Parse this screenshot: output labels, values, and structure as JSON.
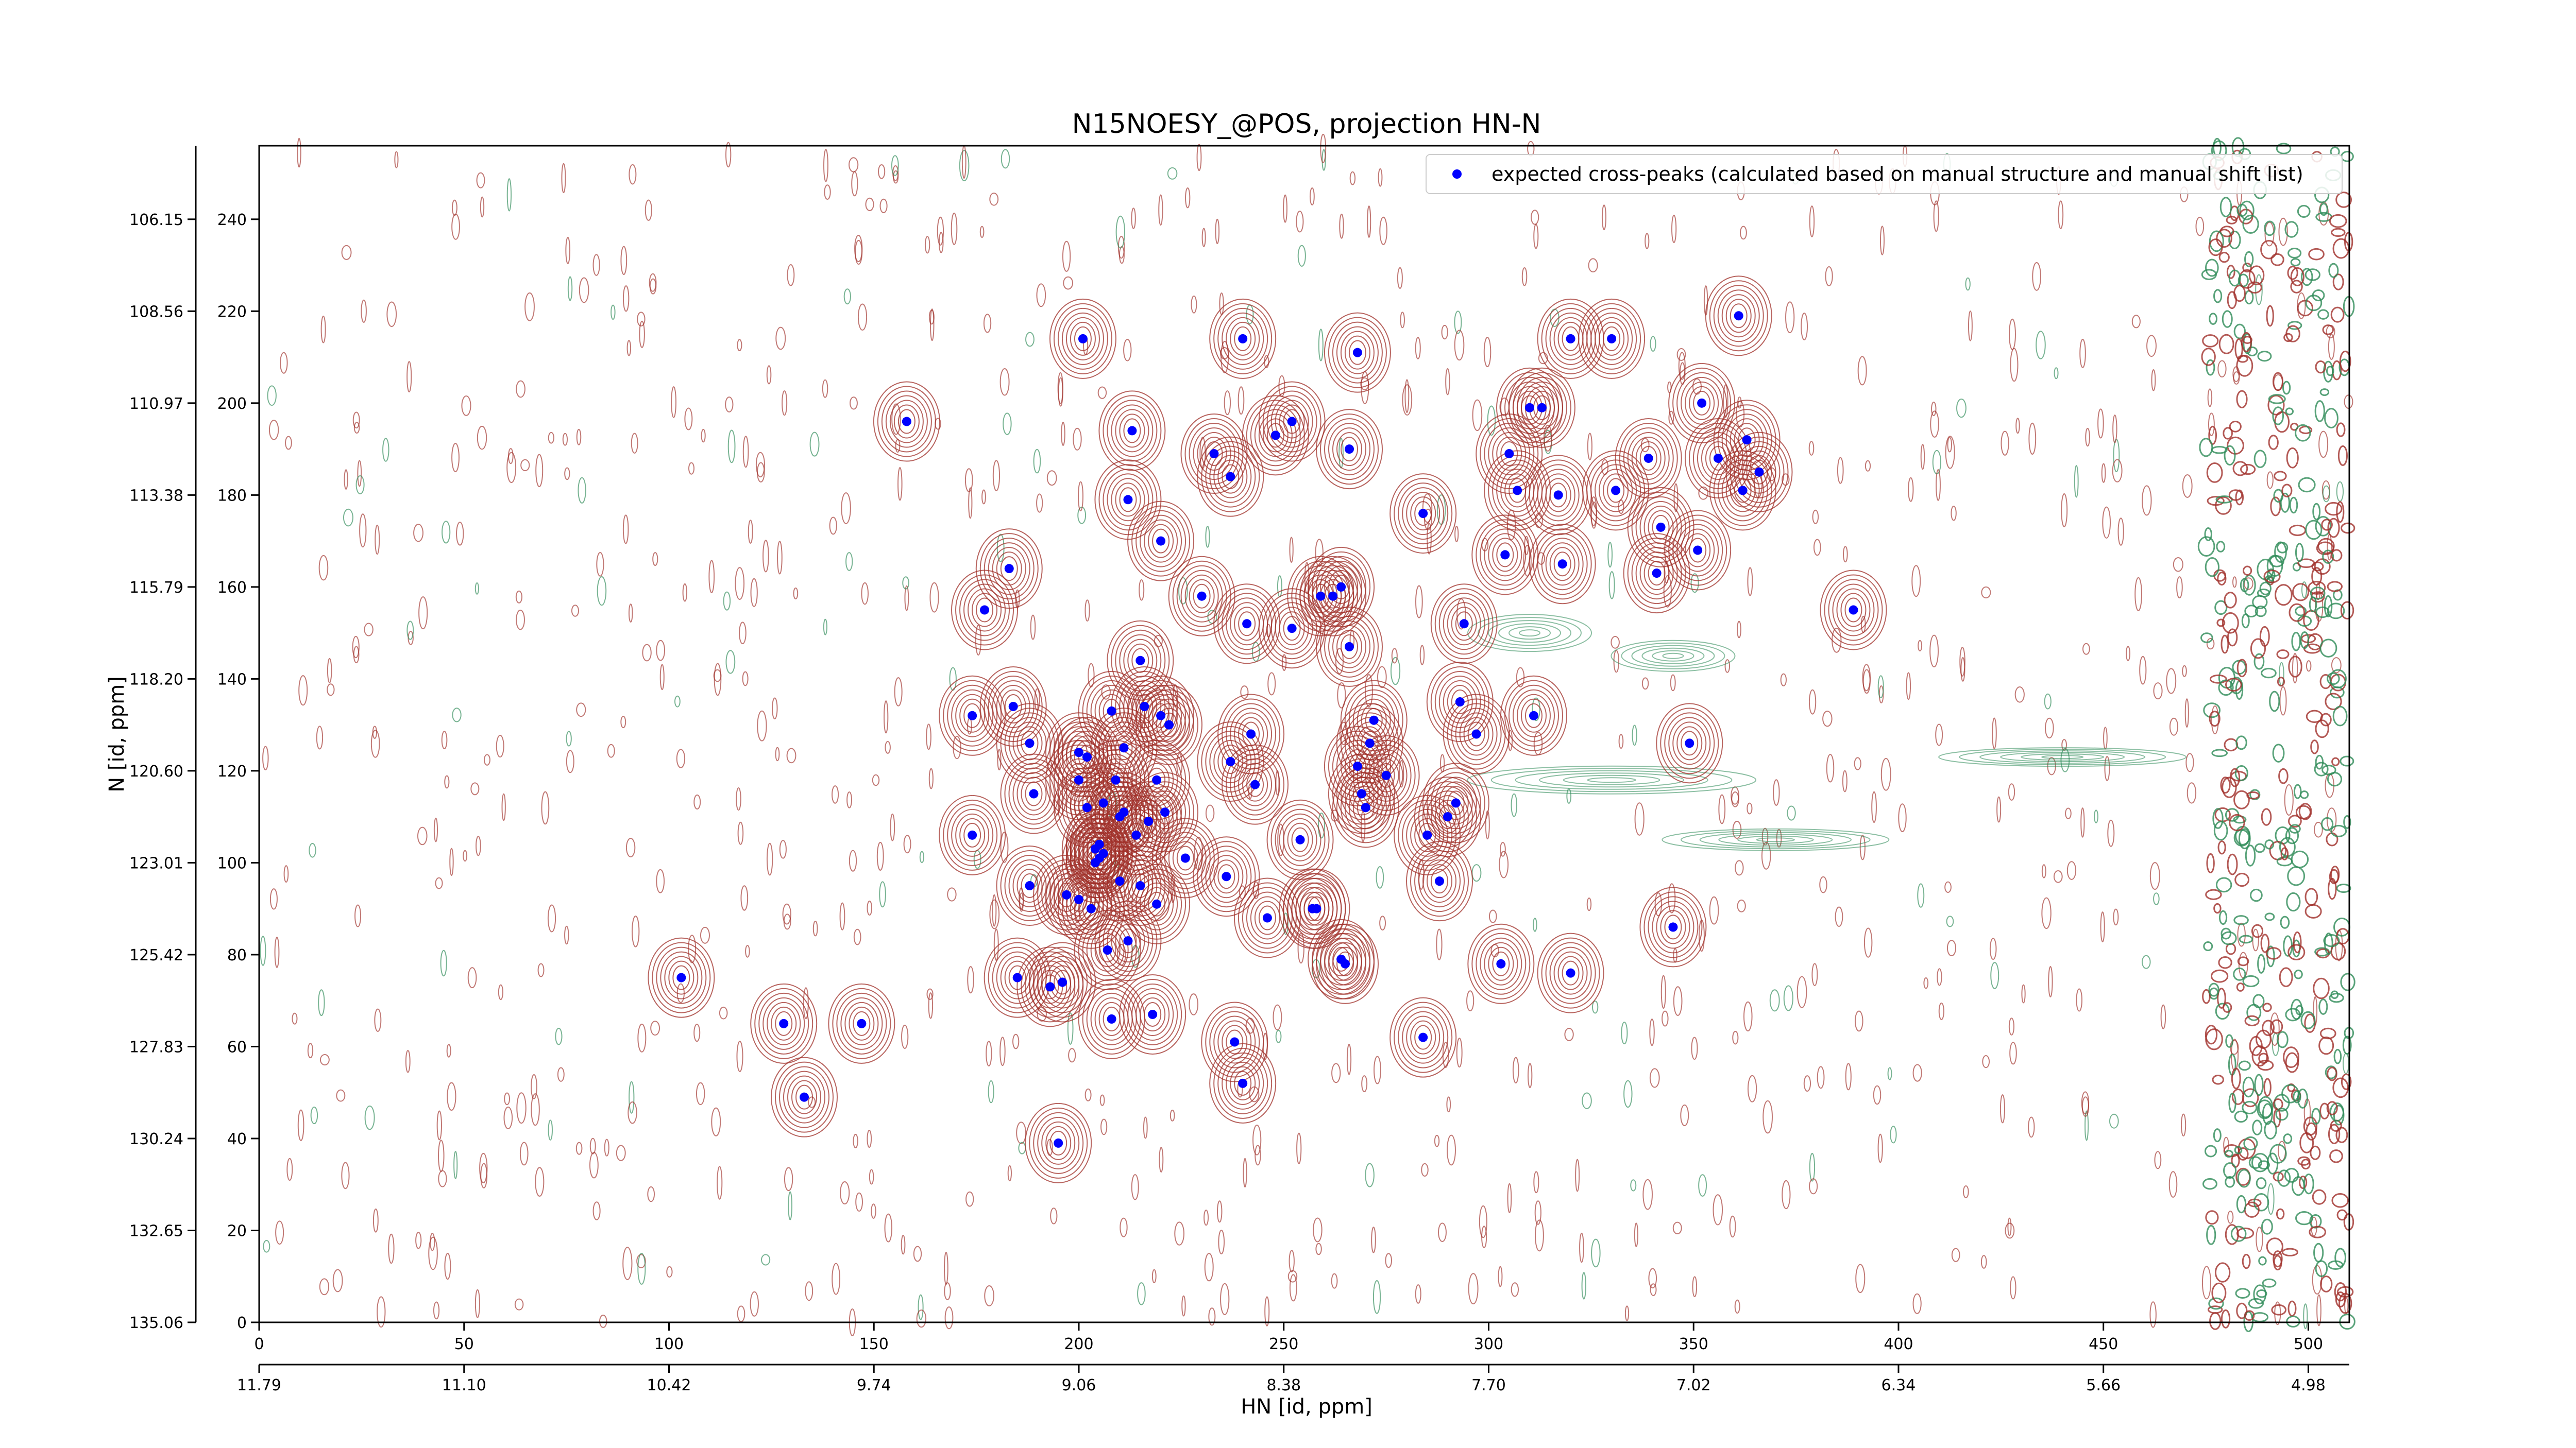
{
  "chart_data": {
    "type": "scatter",
    "title": "N15NOESY_@POS, projection HN-N",
    "xlabel": "HN [id, ppm]",
    "ylabel": "N [id, ppm]",
    "x_index_ticks": [
      "0",
      "50",
      "100",
      "150",
      "200",
      "250",
      "300",
      "350",
      "400",
      "450",
      "500"
    ],
    "x_ppm_ticks": [
      "11.79",
      "11.10",
      "10.42",
      "9.74",
      "9.06",
      "8.38",
      "7.70",
      "7.02",
      "6.34",
      "5.66",
      "4.98"
    ],
    "y_index_ticks": [
      "0",
      "20",
      "40",
      "60",
      "80",
      "100",
      "120",
      "140",
      "160",
      "180",
      "200",
      "220",
      "240"
    ],
    "y_ppm_ticks": [
      "135.06",
      "132.65",
      "130.24",
      "127.83",
      "125.42",
      "123.01",
      "120.60",
      "118.20",
      "115.79",
      "113.38",
      "110.97",
      "108.56",
      "106.15"
    ],
    "xlim": [
      0,
      510
    ],
    "ylim": [
      0,
      256
    ],
    "contour_colors": {
      "positive": "#a0302a",
      "negative": "#2e8b57"
    },
    "legend": {
      "placement": "top-right"
    },
    "series": [
      {
        "name": "expected cross-peaks (calculated based on manual structure and manual shift list)",
        "color": "#0000ff",
        "x": [
          103,
          128,
          133,
          147,
          158,
          174,
          174,
          177,
          183,
          184,
          185,
          188,
          188,
          189,
          193,
          195,
          196,
          197,
          200,
          200,
          200,
          201,
          202,
          202,
          203,
          204,
          204,
          205,
          205,
          206,
          206,
          207,
          208,
          208,
          209,
          210,
          210,
          211,
          211,
          212,
          212,
          213,
          214,
          215,
          215,
          216,
          217,
          218,
          219,
          219,
          220,
          220,
          221,
          222,
          226,
          230,
          233,
          236,
          237,
          237,
          238,
          240,
          240,
          241,
          242,
          243,
          246,
          248,
          252,
          252,
          254,
          257,
          258,
          259,
          262,
          264,
          264,
          265,
          266,
          266,
          268,
          268,
          269,
          270,
          271,
          272,
          275,
          284,
          284,
          285,
          288,
          290,
          292,
          293,
          294,
          297,
          303,
          304,
          305,
          307,
          310,
          311,
          313,
          317,
          318,
          320,
          320,
          330,
          331,
          339,
          341,
          342,
          345,
          349,
          351,
          352,
          356,
          361,
          362,
          363,
          366,
          389
        ],
        "y": [
          75,
          65,
          49,
          65,
          196,
          132,
          106,
          155,
          164,
          134,
          75,
          95,
          126,
          115,
          73,
          39,
          74,
          93,
          92,
          124,
          118,
          214,
          123,
          112,
          90,
          100,
          103,
          101,
          104,
          102,
          113,
          81,
          66,
          133,
          118,
          96,
          110,
          125,
          111,
          179,
          83,
          194,
          106,
          144,
          95,
          134,
          109,
          67,
          118,
          91,
          170,
          132,
          111,
          130,
          101,
          158,
          189,
          97,
          122,
          184,
          61,
          52,
          214,
          152,
          128,
          117,
          88,
          193,
          151,
          196,
          105,
          90,
          90,
          158,
          158,
          79,
          160,
          78,
          147,
          190,
          211,
          121,
          115,
          112,
          126,
          131,
          119,
          176,
          62,
          106,
          96,
          110,
          113,
          135,
          152,
          128,
          78,
          167,
          189,
          181,
          199,
          132,
          199,
          180,
          165,
          76,
          214,
          214,
          181,
          188,
          163,
          173,
          86,
          126,
          168,
          200,
          188,
          219,
          181,
          192,
          185,
          155
        ]
      }
    ]
  }
}
